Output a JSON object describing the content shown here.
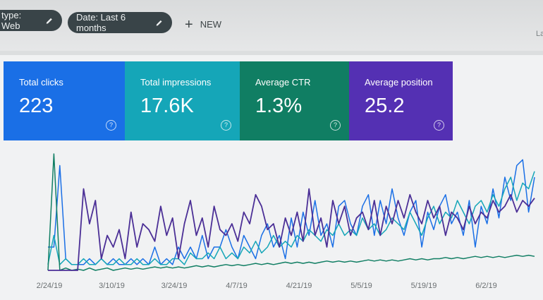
{
  "filters": {
    "type_chip": "type: Web",
    "date_chip": "Date: Last 6 months",
    "new_label": "NEW",
    "corner_text": "La"
  },
  "metrics": [
    {
      "label": "Total clicks",
      "value": "223",
      "color": "#1a6fe6"
    },
    {
      "label": "Total impressions",
      "value": "17.6K",
      "color": "#15a6b8"
    },
    {
      "label": "Average CTR",
      "value": "1.3%",
      "color": "#107e63"
    },
    {
      "label": "Average position",
      "value": "25.2",
      "color": "#5430b3"
    }
  ],
  "icons": {
    "edit": "pencil-icon",
    "add": "plus-icon",
    "help": "question-circle-icon"
  },
  "chart_data": {
    "type": "line",
    "x_tick_labels": [
      "2/24/19",
      "3/10/19",
      "3/24/19",
      "4/7/19",
      "4/21/19",
      "5/5/19",
      "5/19/19",
      "6/2/19"
    ],
    "grid": false,
    "series": [
      {
        "color": "#1a6fe6",
        "values": [
          0.2,
          0.2,
          0.9,
          0.1,
          0.05,
          0.05,
          0.05,
          0.1,
          0.05,
          0.1,
          0.05,
          0.1,
          0.05,
          0.05,
          0.1,
          0.05,
          0.1,
          0.05,
          0.2,
          0.05,
          0.1,
          0.05,
          0.2,
          0.1,
          0.2,
          0.1,
          0.3,
          0.1,
          0.2,
          0.2,
          0.35,
          0.2,
          0.1,
          0.3,
          0.2,
          0.1,
          0.3,
          0.4,
          0.2,
          0.3,
          0.1,
          0.45,
          0.2,
          0.5,
          0.3,
          0.6,
          0.3,
          0.4,
          0.2,
          0.55,
          0.6,
          0.4,
          0.3,
          0.55,
          0.65,
          0.3,
          0.6,
          0.4,
          0.7,
          0.45,
          0.3,
          0.5,
          0.6,
          0.2,
          0.5,
          0.35,
          0.55,
          0.65,
          0.4,
          0.5,
          0.3,
          0.6,
          0.2,
          0.55,
          0.4,
          0.7,
          0.45,
          0.8,
          0.6,
          0.9,
          0.95,
          0.5,
          0.8
        ]
      },
      {
        "color": "#15a6b8",
        "values": [
          0.05,
          0.3,
          0.05,
          0.1,
          0.05,
          0.05,
          0.1,
          0.05,
          0.05,
          0.1,
          0.05,
          0.05,
          0.1,
          0.05,
          0.05,
          0.1,
          0.05,
          0.05,
          0.1,
          0.05,
          0.05,
          0.1,
          0.1,
          0.05,
          0.15,
          0.1,
          0.1,
          0.15,
          0.1,
          0.2,
          0.1,
          0.15,
          0.1,
          0.2,
          0.15,
          0.25,
          0.15,
          0.2,
          0.3,
          0.2,
          0.25,
          0.2,
          0.3,
          0.25,
          0.35,
          0.3,
          0.25,
          0.35,
          0.3,
          0.4,
          0.3,
          0.35,
          0.3,
          0.45,
          0.35,
          0.4,
          0.3,
          0.35,
          0.45,
          0.4,
          0.35,
          0.5,
          0.4,
          0.3,
          0.45,
          0.55,
          0.4,
          0.5,
          0.45,
          0.6,
          0.5,
          0.4,
          0.55,
          0.6,
          0.5,
          0.65,
          0.55,
          0.7,
          0.8,
          0.6,
          0.75,
          0.7,
          0.85
        ]
      },
      {
        "color": "#107e63",
        "values": [
          0.0,
          1.0,
          0.0,
          0.02,
          0.0,
          0.01,
          0.0,
          0.02,
          0.0,
          0.01,
          0.02,
          0.0,
          0.01,
          0.02,
          0.01,
          0.02,
          0.01,
          0.02,
          0.03,
          0.02,
          0.03,
          0.02,
          0.03,
          0.02,
          0.03,
          0.04,
          0.03,
          0.04,
          0.03,
          0.04,
          0.05,
          0.04,
          0.05,
          0.04,
          0.05,
          0.06,
          0.05,
          0.06,
          0.05,
          0.06,
          0.07,
          0.06,
          0.07,
          0.06,
          0.07,
          0.06,
          0.07,
          0.08,
          0.07,
          0.08,
          0.07,
          0.08,
          0.07,
          0.08,
          0.09,
          0.08,
          0.09,
          0.08,
          0.09,
          0.08,
          0.09,
          0.1,
          0.09,
          0.1,
          0.09,
          0.1,
          0.1,
          0.11,
          0.1,
          0.11,
          0.1,
          0.11,
          0.12,
          0.11,
          0.12,
          0.11,
          0.12,
          0.11,
          0.12,
          0.13,
          0.12,
          0.13,
          0.12
        ]
      },
      {
        "color": "#4b2f96",
        "values": [
          0.0,
          0.0,
          0.0,
          0.0,
          0.0,
          0.0,
          0.7,
          0.4,
          0.6,
          0.1,
          0.3,
          0.2,
          0.35,
          0.1,
          0.5,
          0.2,
          0.4,
          0.35,
          0.25,
          0.55,
          0.3,
          0.45,
          0.1,
          0.4,
          0.6,
          0.3,
          0.45,
          0.2,
          0.55,
          0.35,
          0.3,
          0.4,
          0.25,
          0.5,
          0.4,
          0.65,
          0.55,
          0.35,
          0.4,
          0.2,
          0.45,
          0.3,
          0.5,
          0.25,
          0.7,
          0.3,
          0.45,
          0.2,
          0.6,
          0.4,
          0.55,
          0.3,
          0.45,
          0.5,
          0.35,
          0.6,
          0.3,
          0.55,
          0.4,
          0.6,
          0.45,
          0.65,
          0.5,
          0.4,
          0.6,
          0.45,
          0.55,
          0.3,
          0.5,
          0.45,
          0.35,
          0.55,
          0.4,
          0.5,
          0.45,
          0.6,
          0.5,
          0.55,
          0.65,
          0.5,
          0.6,
          0.55,
          0.62
        ]
      }
    ]
  }
}
